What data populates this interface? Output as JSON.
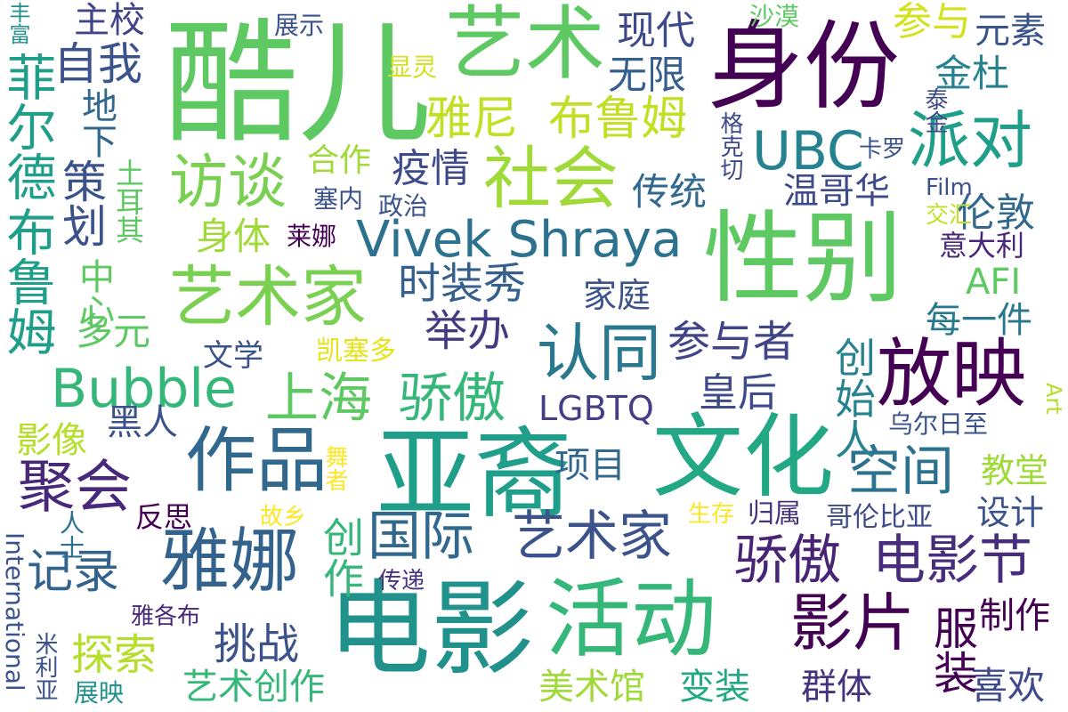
{
  "words": [
    {
      "text": "酷儿",
      "color": "#5ec962"
    },
    {
      "text": "身份",
      "color": "#440154"
    },
    {
      "text": "性别",
      "color": "#5ec962"
    },
    {
      "text": "亚裔",
      "color": "#1f9e89"
    },
    {
      "text": "电影",
      "color": "#21918c"
    },
    {
      "text": "文化",
      "color": "#22a884"
    },
    {
      "text": "活动",
      "color": "#35b779"
    },
    {
      "text": "艺术",
      "color": "#5ec962"
    },
    {
      "text": "作品",
      "color": "#31688e"
    },
    {
      "text": "雅娜",
      "color": "#33638d"
    },
    {
      "text": "社会",
      "color": "#a0da39"
    },
    {
      "text": "放映",
      "color": "#440154"
    },
    {
      "text": "艺术家",
      "color": "#7ad151"
    },
    {
      "text": "认同",
      "color": "#2a788e"
    },
    {
      "text": "派对",
      "color": "#1f9e89"
    },
    {
      "text": "Vivek Shraya",
      "color": "#2c728e"
    },
    {
      "text": "Bubble",
      "color": "#35b779"
    },
    {
      "text": "UBC",
      "color": "#26828e"
    },
    {
      "text": "上海",
      "color": "#5ec962"
    },
    {
      "text": "骄傲",
      "color": "#35b779"
    },
    {
      "text": "国际",
      "color": "#31688e"
    },
    {
      "text": "艺术家",
      "color": "#3b528b"
    },
    {
      "text": "聚会",
      "color": "#482878"
    },
    {
      "text": "影片",
      "color": "#440154"
    },
    {
      "text": "骄傲",
      "color": "#482475"
    },
    {
      "text": "电影节",
      "color": "#472d7b"
    },
    {
      "text": "空间",
      "color": "#2c728e"
    },
    {
      "text": "访谈",
      "color": "#7ad151"
    },
    {
      "text": "雅尼",
      "color": "#c2df23"
    },
    {
      "text": "布鲁姆",
      "color": "#c2df23"
    },
    {
      "text": "时装秀",
      "color": "#355f8d"
    },
    {
      "text": "举办",
      "color": "#443983"
    },
    {
      "text": "参与者",
      "color": "#414487"
    },
    {
      "text": "现代",
      "color": "#3e4a89"
    },
    {
      "text": "无限",
      "color": "#355f8d"
    },
    {
      "text": "自我",
      "color": "#3b528b"
    },
    {
      "text": "主校",
      "color": "#414487"
    },
    {
      "text": "参与",
      "color": "#d2e21b"
    },
    {
      "text": "元素",
      "color": "#3b528b"
    },
    {
      "text": "金杜",
      "color": "#26828e"
    },
    {
      "text": "疫情",
      "color": "#3e4a89"
    },
    {
      "text": "合作",
      "color": "#a0da39"
    },
    {
      "text": "传统",
      "color": "#31688e"
    },
    {
      "text": "温哥华",
      "color": "#3e4a89"
    },
    {
      "text": "伦敦",
      "color": "#31688e"
    },
    {
      "text": "身体",
      "color": "#a0da39"
    },
    {
      "text": "家庭",
      "color": "#3b528b"
    },
    {
      "text": "每一件",
      "color": "#2a788e"
    },
    {
      "text": "AFI",
      "color": "#5ec962"
    },
    {
      "text": "意大利",
      "color": "#482878"
    },
    {
      "text": "LGBTQ",
      "color": "#433e85"
    },
    {
      "text": "皇后",
      "color": "#3e4a89"
    },
    {
      "text": "项目",
      "color": "#31688e"
    },
    {
      "text": "黑人",
      "color": "#3b528b"
    },
    {
      "text": "影像",
      "color": "#b5de2b"
    },
    {
      "text": "文学",
      "color": "#3b528b"
    },
    {
      "text": "设计",
      "color": "#3b528b"
    },
    {
      "text": "教堂",
      "color": "#a0da39"
    },
    {
      "text": "记录",
      "color": "#33638d"
    },
    {
      "text": "反思",
      "color": "#440154"
    },
    {
      "text": "生存",
      "color": "#fde725"
    },
    {
      "text": "归属",
      "color": "#46337e"
    },
    {
      "text": "哥伦比亚",
      "color": "#3e4a89"
    },
    {
      "text": "挑战",
      "color": "#3b528b"
    },
    {
      "text": "探索",
      "color": "#b5de2b"
    },
    {
      "text": "制作",
      "color": "#440154"
    },
    {
      "text": "喜欢",
      "color": "#3e4a89"
    },
    {
      "text": "美术馆",
      "color": "#a0da39"
    },
    {
      "text": "变装",
      "color": "#22a884"
    },
    {
      "text": "群体",
      "color": "#46337e"
    },
    {
      "text": "艺术创作",
      "color": "#35b779"
    },
    {
      "text": "展映",
      "color": "#21918c"
    },
    {
      "text": "雅各布",
      "color": "#482878"
    },
    {
      "text": "传递",
      "color": "#46337e"
    },
    {
      "text": "多元",
      "color": "#5ec962"
    },
    {
      "text": "凯塞多",
      "color": "#e5e419"
    },
    {
      "text": "莱娜",
      "color": "#440154"
    },
    {
      "text": "塞内",
      "color": "#3b528b"
    },
    {
      "text": "政治",
      "color": "#3b528b"
    },
    {
      "text": "展示",
      "color": "#3b528b"
    },
    {
      "text": "沙漠",
      "color": "#5ec962"
    },
    {
      "text": "乌尔日至",
      "color": "#3b528b"
    },
    {
      "text": "Film",
      "color": "#3b528b"
    },
    {
      "text": "交汇",
      "color": "#c2df23"
    },
    {
      "text": "显灵",
      "color": "#d2e21b"
    },
    {
      "text": "故乡",
      "color": "#fde725"
    },
    {
      "text": "丰富",
      "color": "#21918c"
    },
    {
      "text": "地下",
      "color": "#31688e"
    },
    {
      "text": "卡罗",
      "color": "#3b528b"
    },
    {
      "text": "泰金",
      "color": "#3e4a89"
    },
    {
      "text": "菲尔德",
      "color": "#1f9e89"
    },
    {
      "text": "布鲁姆",
      "color": "#1f9e89"
    },
    {
      "text": "策划",
      "color": "#3b528b"
    },
    {
      "text": "土耳其",
      "color": "#5ec962"
    },
    {
      "text": "中心",
      "color": "#5ec962"
    },
    {
      "text": "创始人",
      "color": "#26828e"
    },
    {
      "text": "服装",
      "color": "#440154"
    },
    {
      "text": "创作",
      "color": "#35b779"
    },
    {
      "text": "舞者",
      "color": "#fde725"
    },
    {
      "text": "人士",
      "color": "#2c728e"
    },
    {
      "text": "格克切",
      "color": "#3e4a89"
    },
    {
      "text": "Art",
      "color": "#b5de2b"
    },
    {
      "text": "International",
      "color": "#3b528b"
    },
    {
      "text": "米利亚",
      "color": "#3b528b"
    }
  ]
}
